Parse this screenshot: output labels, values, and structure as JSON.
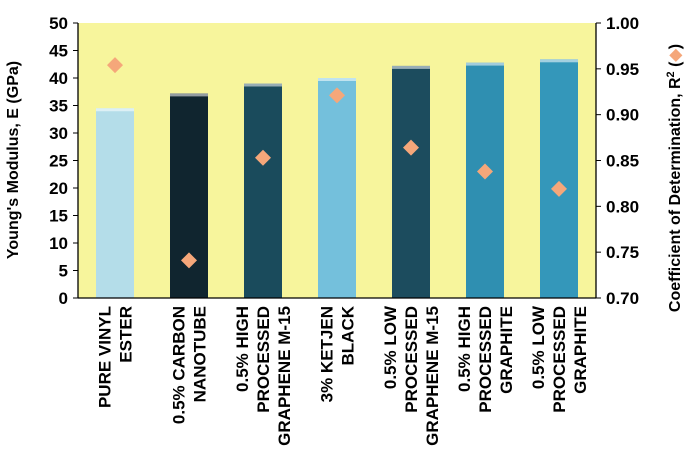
{
  "chart_data": {
    "type": "bar",
    "categories": [
      [
        "PURE VINYL",
        "ESTER"
      ],
      [
        "0.5% CARBON",
        "NANOTUBE"
      ],
      [
        "0.5% HIGH",
        "PROCESSED",
        "GRAPHENE M-15"
      ],
      [
        "3% KETJEN",
        "BLACK"
      ],
      [
        "0.5% LOW",
        "PROCESSED",
        "GRAPHENE M-15"
      ],
      [
        "0.5% HIGH",
        "PROCESSED",
        "GRAPHITE"
      ],
      [
        "0.5% LOW",
        "PROCESSED",
        "GRAPHITE"
      ]
    ],
    "series": [
      {
        "kind": "bar",
        "axis": "left",
        "values": [
          34.5,
          37.2,
          39.0,
          40.0,
          42.2,
          42.8,
          43.4
        ],
        "colors": [
          "#b4dde9",
          "#10252f",
          "#1a4b5c",
          "#74c0dc",
          "#1c4c5e",
          "#2f8fb1",
          "#3497ba"
        ]
      },
      {
        "kind": "scatter",
        "axis": "right",
        "marker": "diamond",
        "color": "#f5a77a",
        "values": [
          0.954,
          0.741,
          0.853,
          0.921,
          0.864,
          0.838,
          0.819
        ]
      }
    ],
    "ylabel": "Young's Modulus, E (GPa)",
    "ylim": [
      0,
      50
    ],
    "yticks": [
      "0",
      "5",
      "10",
      "15",
      "20",
      "25",
      "30",
      "35",
      "40",
      "45",
      "50"
    ],
    "y2label": "Coefficient of Determination, R",
    "y2label_sup": "2",
    "y2label_open": " (",
    "y2label_close": ")",
    "y2lim": [
      0.7,
      1.0
    ],
    "y2ticks": [
      "0.70",
      "0.75",
      "0.80",
      "0.85",
      "0.90",
      "0.95",
      "1.00"
    ],
    "plot_background": "#f7f59c",
    "grid": false
  }
}
